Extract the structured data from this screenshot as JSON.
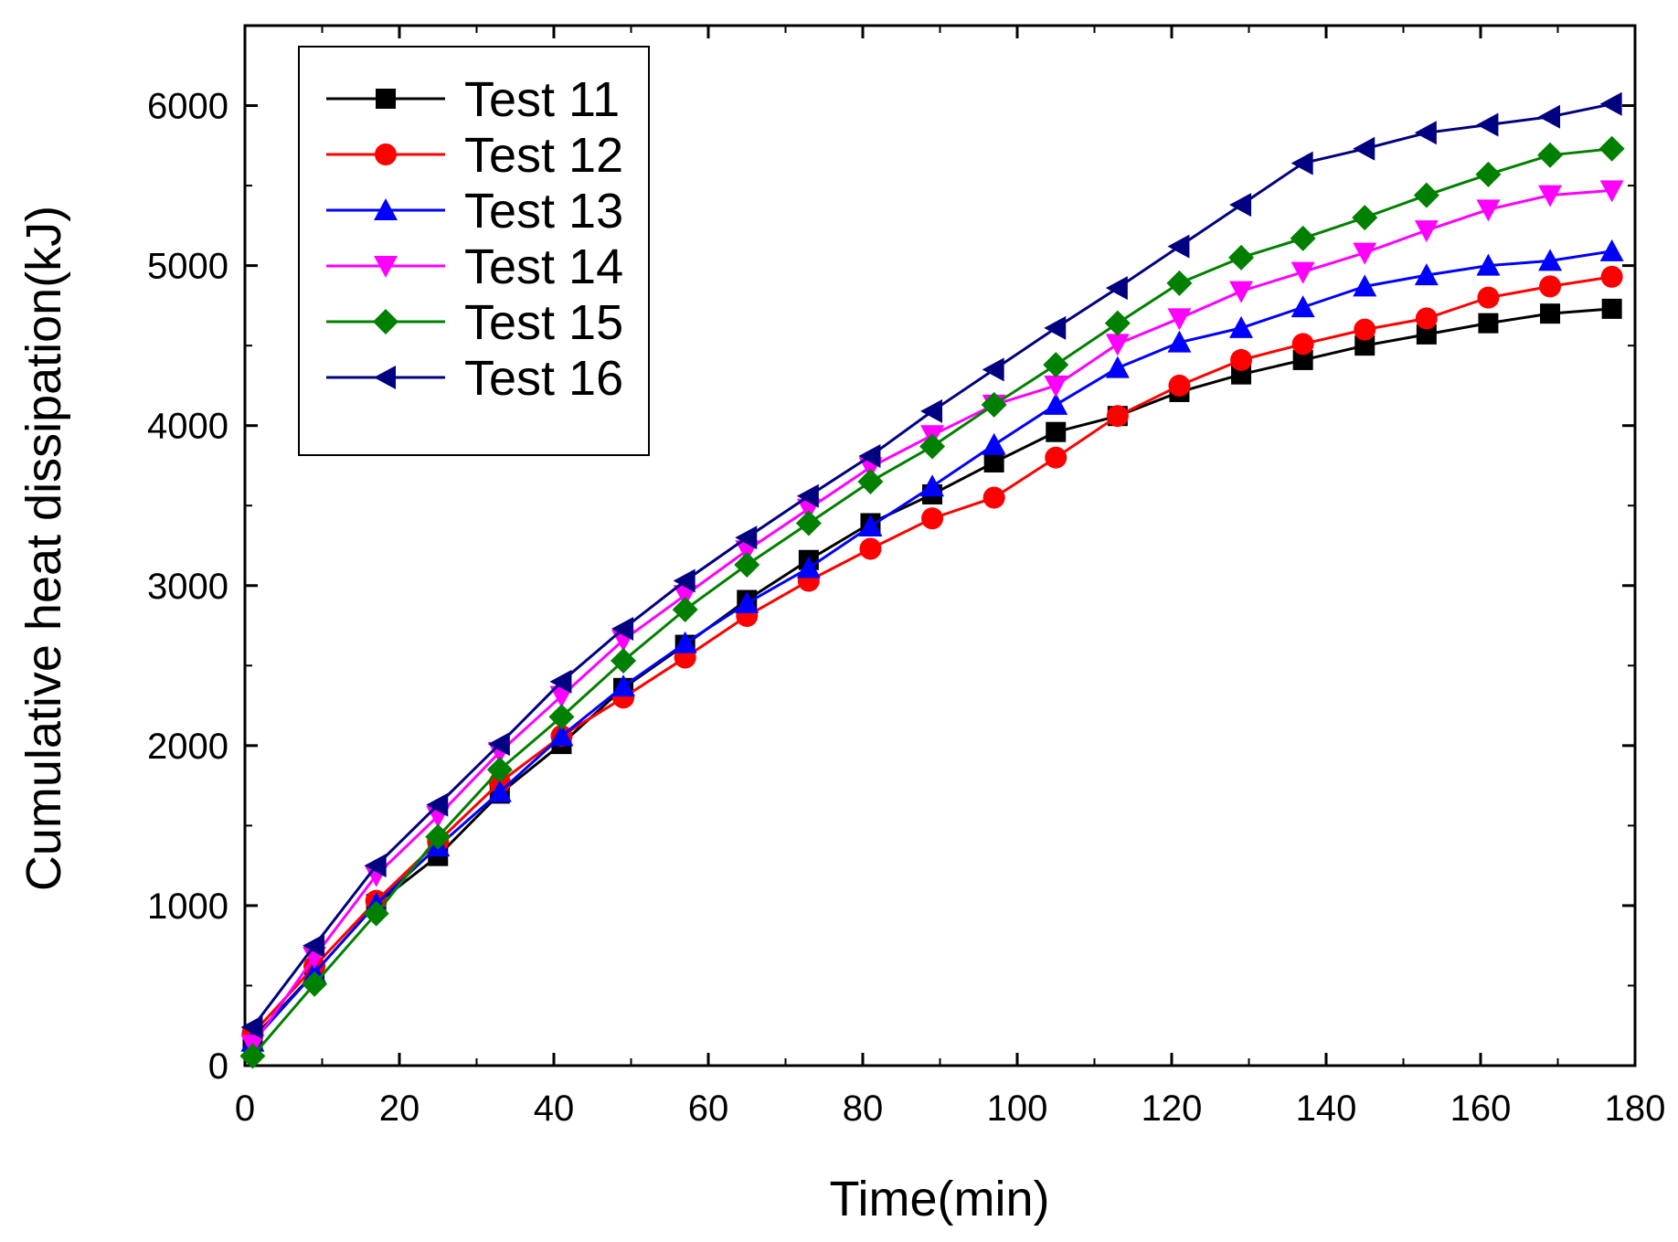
{
  "chart_data": {
    "type": "line",
    "title": "",
    "xlabel": "Time(min)",
    "ylabel": "Cumulative heat dissipation(kJ)",
    "xlim": [
      0,
      180
    ],
    "ylim": [
      0,
      6500
    ],
    "xticks": [
      0,
      20,
      40,
      60,
      80,
      100,
      120,
      140,
      160,
      180
    ],
    "yticks": [
      0,
      1000,
      2000,
      3000,
      4000,
      5000,
      6000
    ],
    "grid": false,
    "legend_position": "top-left",
    "x": [
      1,
      9,
      17,
      25,
      33,
      41,
      49,
      57,
      65,
      73,
      81,
      89,
      97,
      105,
      113,
      121,
      129,
      137,
      145,
      153,
      161,
      169,
      177
    ],
    "series": [
      {
        "name": "Test 11",
        "color": "#000000",
        "marker": "square",
        "values": [
          170,
          580,
          1010,
          1310,
          1700,
          2010,
          2360,
          2630,
          2910,
          3160,
          3390,
          3570,
          3770,
          3960,
          4060,
          4210,
          4320,
          4410,
          4500,
          4570,
          4640,
          4700,
          4730
        ]
      },
      {
        "name": "Test 12",
        "color": "#ff0000",
        "marker": "circle",
        "values": [
          200,
          620,
          1030,
          1400,
          1770,
          2060,
          2300,
          2550,
          2810,
          3030,
          3230,
          3420,
          3550,
          3800,
          4060,
          4250,
          4410,
          4510,
          4600,
          4670,
          4800,
          4870,
          4930
        ]
      },
      {
        "name": "Test 13",
        "color": "#0000ff",
        "marker": "triangle-up",
        "values": [
          150,
          580,
          1010,
          1370,
          1710,
          2060,
          2370,
          2640,
          2890,
          3110,
          3370,
          3620,
          3880,
          4130,
          4360,
          4520,
          4610,
          4740,
          4870,
          4940,
          5000,
          5030,
          5090
        ]
      },
      {
        "name": "Test 14",
        "color": "#ff00ff",
        "marker": "triangle-down",
        "values": [
          130,
          680,
          1190,
          1560,
          1960,
          2310,
          2660,
          2940,
          3220,
          3480,
          3740,
          3940,
          4130,
          4250,
          4510,
          4670,
          4840,
          4960,
          5080,
          5220,
          5350,
          5440,
          5470
        ]
      },
      {
        "name": "Test 15",
        "color": "#008000",
        "marker": "diamond",
        "values": [
          60,
          510,
          950,
          1430,
          1850,
          2180,
          2530,
          2850,
          3130,
          3390,
          3650,
          3870,
          4130,
          4380,
          4640,
          4890,
          5050,
          5170,
          5300,
          5440,
          5570,
          5690,
          5730
        ]
      },
      {
        "name": "Test 16",
        "color": "#000080",
        "marker": "triangle-left",
        "values": [
          240,
          750,
          1250,
          1630,
          2010,
          2400,
          2730,
          3030,
          3300,
          3560,
          3810,
          4090,
          4350,
          4610,
          4860,
          5120,
          5380,
          5640,
          5730,
          5830,
          5880,
          5930,
          6010
        ]
      }
    ]
  }
}
